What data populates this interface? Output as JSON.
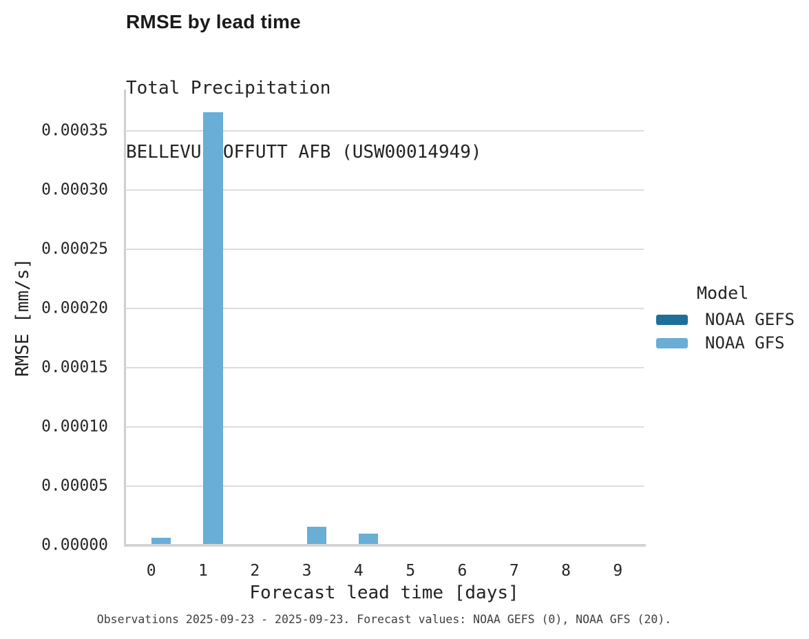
{
  "caption": "Observations 2025-09-23 - 2025-09-23. Forecast values: NOAA GEFS (0), NOAA GFS (20).",
  "colors": {
    "grid": "#dcdcdc",
    "spine": "#cfcfcf",
    "baseline": "#d4d4d4",
    "gefs_blue": "#1e6e9c",
    "gfs_blue": "#68aed6"
  },
  "chart_data": {
    "type": "bar",
    "title": "RMSE by lead time",
    "subtitle_line1": "Total Precipitation",
    "subtitle_line2": "BELLEVUE OFFUTT AFB (USW00014949)",
    "xlabel": "Forecast lead time [days]",
    "ylabel": "RMSE [mm/s]",
    "categories": [
      "0",
      "1",
      "2",
      "3",
      "4",
      "5",
      "6",
      "7",
      "8",
      "9"
    ],
    "series": [
      {
        "name": "NOAA GEFS",
        "color": "#1e6e9c",
        "values": [
          0,
          0,
          0,
          0,
          0,
          0,
          0,
          0,
          0,
          0
        ]
      },
      {
        "name": "NOAA GFS",
        "color": "#68aed6",
        "values": [
          6.5e-06,
          0.000366,
          0,
          1.55e-05,
          1e-05,
          0,
          0,
          0,
          0,
          0
        ]
      }
    ],
    "ylim": [
      0,
      0.000385
    ],
    "yticks": [
      0,
      5e-05,
      0.0001,
      0.00015,
      0.0002,
      0.00025,
      0.0003,
      0.00035
    ],
    "ytick_labels": [
      "0.00000",
      "0.00005",
      "0.00010",
      "0.00015",
      "0.00020",
      "0.00025",
      "0.00030",
      "0.00035"
    ],
    "grid": "horizontal",
    "legend_title": "Model",
    "legend_position": "right-center",
    "bar_group": {
      "band_count": 10,
      "bar_width_frac": 0.38
    }
  }
}
